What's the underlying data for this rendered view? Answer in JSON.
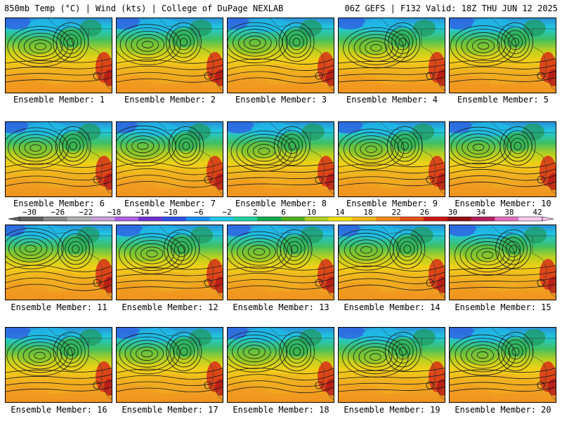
{
  "header": {
    "left": "850mb Temp (°C) | Wind (kts) | College of DuPage NEXLAB",
    "right": "06Z GEFS | F132 Valid: 18Z THU JUN 12 2025"
  },
  "panel_label_prefix": "Ensemble Member: ",
  "members": [
    1,
    2,
    3,
    4,
    5,
    6,
    7,
    8,
    9,
    10,
    11,
    12,
    13,
    14,
    15,
    16,
    17,
    18,
    19,
    20
  ],
  "colorbar": {
    "ticks": [
      "−30",
      "−26",
      "−22",
      "−18",
      "−14",
      "−10",
      "−6",
      "−2",
      "2",
      "6",
      "10",
      "14",
      "18",
      "22",
      "26",
      "30",
      "34",
      "38",
      "42"
    ],
    "colors": [
      "#9a9a9a",
      "#6e6e6e",
      "#8f8f8f",
      "#b4b4b4",
      "#d0d0d0",
      "#c48fd8",
      "#e070e8",
      "#a040c8",
      "#7a30d0",
      "#4040e0",
      "#2070f0",
      "#20a0f0",
      "#20d0e8",
      "#30e0c0",
      "#20c080",
      "#10a040",
      "#40b020",
      "#a0c818",
      "#e8e010",
      "#f0c010",
      "#f0a018",
      "#f08018",
      "#e85018",
      "#d82018",
      "#b01010",
      "#800810",
      "#a01040",
      "#d03080",
      "#e870c0",
      "#f0a0e0",
      "#f8d0f0"
    ],
    "ramp": [
      "#606060",
      "#8a8a8a",
      "#b0b0b0",
      "#c8a0d8",
      "#b060e0",
      "#7030d0",
      "#3050e8",
      "#1890f0",
      "#20c8e8",
      "#20d0a0",
      "#10a850",
      "#50b020",
      "#b0d020",
      "#f0e010",
      "#f0b818",
      "#f08818",
      "#e85018",
      "#d01818",
      "#901010",
      "#b02060",
      "#e070c0",
      "#f8c8f0"
    ]
  }
}
